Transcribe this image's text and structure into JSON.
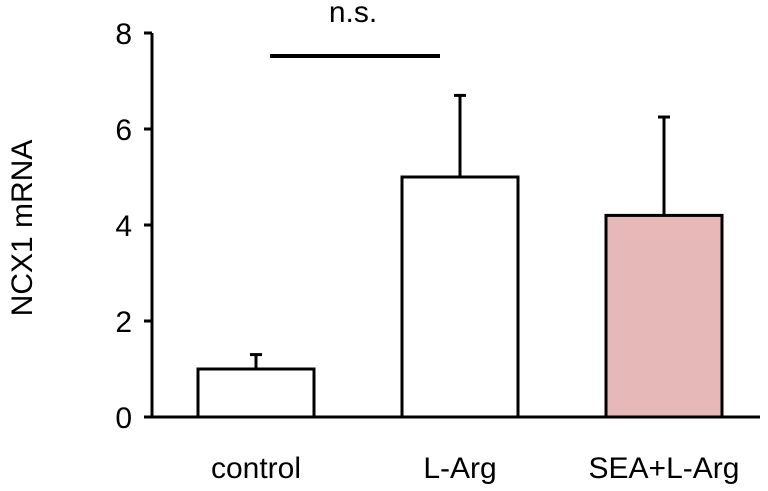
{
  "chart_data": {
    "type": "bar",
    "ylabel": "NCX1 mRNA",
    "xlabel": "",
    "ylim": [
      0,
      8
    ],
    "yticks": [
      0,
      2,
      4,
      6,
      8
    ],
    "grid": false,
    "categories": [
      "control",
      "L-Arg",
      "SEA+L-Arg"
    ],
    "values": [
      1.0,
      5.0,
      4.2
    ],
    "error": [
      0.3,
      1.7,
      2.05
    ],
    "bar_colors": [
      "#ffffff",
      "#ffffff",
      "#e6b8b7"
    ],
    "edge_color": "#000000",
    "annotations": [
      {
        "text": "n.s.",
        "from": "control",
        "to": "L-Arg"
      }
    ]
  }
}
